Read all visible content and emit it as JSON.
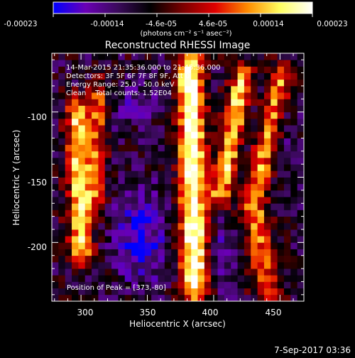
{
  "chart_data": {
    "type": "heatmap",
    "title": "Reconstructed RHESSI Image",
    "colorbar": {
      "ticks": [
        "-0.00023",
        "-0.00014",
        "-4.6e-05",
        "4.6e-05",
        "0.00014",
        "0.00023"
      ],
      "range": [
        -0.00023,
        0.00023
      ],
      "unit": "(photons cm⁻² s⁻¹ asec⁻²)",
      "colors": [
        "#0000ff",
        "#6a00b5",
        "#3a0a5a",
        "#000000",
        "#7a0000",
        "#e00000",
        "#ff8c00",
        "#ffff60",
        "#ffffff"
      ]
    },
    "annotations": [
      "14-Mar-2015 21:35:36.000 to 21:45:36.000",
      "Detectors: 3F 5F 6F 7F 8F 9F, Att 0",
      "Energy Range: 25.0 - 50.0 keV",
      "Clean    Total counts: 1.52E04"
    ],
    "peak_label": "Position of Peak = [373,-80]",
    "xlabel": "Heliocentric X (arcsec)",
    "ylabel": "Heliocentric Y (arcsec)",
    "xlim": [
      278,
      468
    ],
    "ylim": [
      -245,
      -55
    ],
    "x_ticks": [
      300,
      350,
      400,
      450
    ],
    "y_ticks": [
      -100,
      -150,
      -200
    ],
    "image_ridges": [
      {
        "x0": 382,
        "x1": 386,
        "y0": -60,
        "y1": -240,
        "width": 10,
        "amp": 1.0
      },
      {
        "x0": 298,
        "x1": 300,
        "y0": -95,
        "y1": -210,
        "width": 9,
        "amp": 0.8
      },
      {
        "x0": 314,
        "x1": 312,
        "y0": -80,
        "y1": -170,
        "width": 6,
        "amp": 0.5
      },
      {
        "x0": 422,
        "x1": 405,
        "y0": -70,
        "y1": -165,
        "width": 8,
        "amp": 0.75
      },
      {
        "x0": 452,
        "x1": 430,
        "y0": -70,
        "y1": -170,
        "width": 9,
        "amp": 0.6
      },
      {
        "x0": 430,
        "x1": 440,
        "y0": -175,
        "y1": -240,
        "width": 10,
        "amp": 0.55
      }
    ],
    "image_negative": [
      {
        "x": 345,
        "y": -195,
        "sx": 18,
        "sy": 35,
        "amp": 1.0
      },
      {
        "x": 340,
        "y": -95,
        "sx": 18,
        "sy": 15,
        "amp": 0.6
      },
      {
        "x": 410,
        "y": -210,
        "sx": 12,
        "sy": 25,
        "amp": 0.6
      },
      {
        "x": 455,
        "y": -110,
        "sx": 10,
        "sy": 25,
        "amp": 0.4
      }
    ],
    "footer_date": "7-Sep-2017 03:36"
  }
}
